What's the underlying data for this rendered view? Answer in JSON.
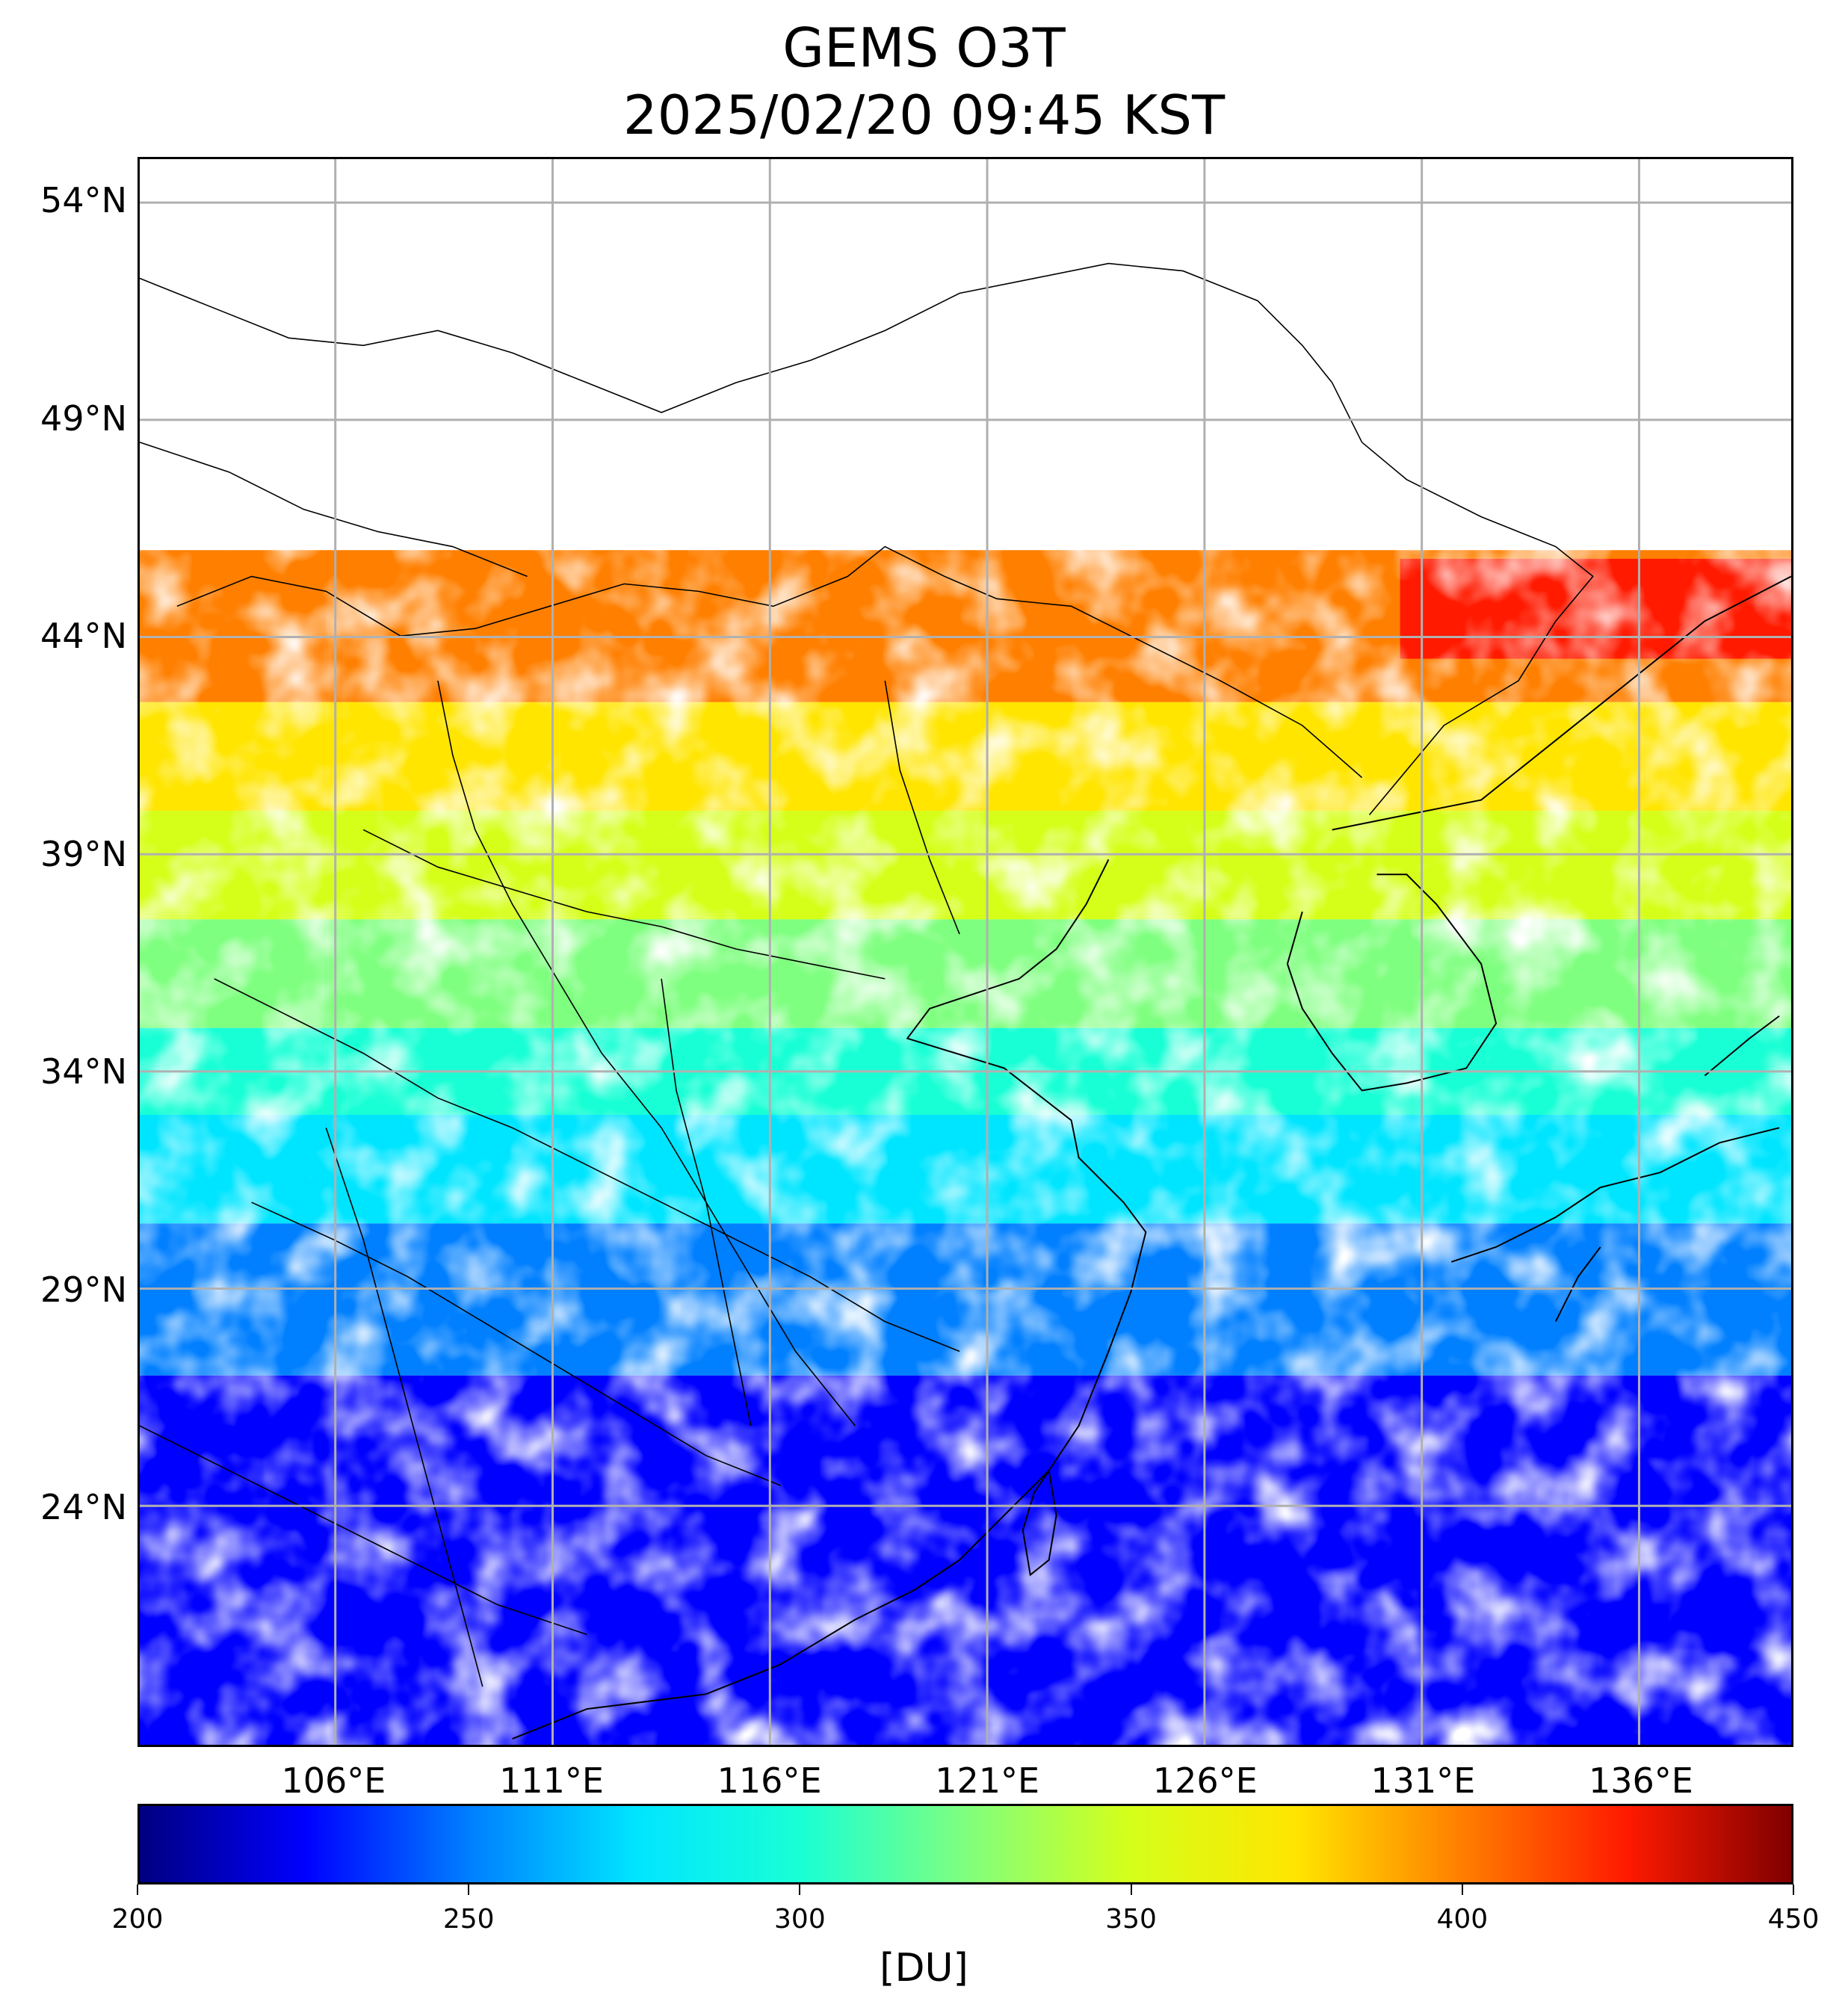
{
  "title": {
    "line1": "GEMS O3T",
    "line2": "2025/02/20 09:45 KST"
  },
  "map": {
    "lon_range": [
      101.5,
      139.5
    ],
    "lat_range": [
      18.5,
      55
    ],
    "lat_labels": [
      "54°N",
      "49°N",
      "44°N",
      "39°N",
      "34°N",
      "29°N",
      "24°N"
    ],
    "lat_values": [
      54,
      49,
      44,
      39,
      34,
      29,
      24
    ],
    "lon_labels": [
      "106°E",
      "111°E",
      "116°E",
      "121°E",
      "126°E",
      "131°E",
      "136°E"
    ],
    "lon_values": [
      106,
      111,
      116,
      121,
      126,
      131,
      136
    ],
    "gridlines": true,
    "colormap": "jet",
    "ozone_regions": [
      {
        "value": 410,
        "note": ""
      },
      {
        "value": 360,
        "note": ""
      },
      {
        "value": 330,
        "note": ""
      },
      {
        "value": 300,
        "note": ""
      },
      {
        "value": 285,
        "note": ""
      },
      {
        "value": 225,
        "note": ""
      }
    ]
  },
  "colorbar": {
    "min": 200,
    "max": 450,
    "ticks": [
      "200",
      "250",
      "300",
      "350",
      "400",
      "450"
    ],
    "tick_values": [
      200,
      250,
      300,
      350,
      400,
      450
    ],
    "unit": "[DU]",
    "colors": [
      "#00007f",
      "#0000ff",
      "#007fff",
      "#00e5ff",
      "#19ffd5",
      "#7fff7f",
      "#d5ff19",
      "#ffe500",
      "#ff7f00",
      "#ff1a00",
      "#7f0000"
    ]
  }
}
